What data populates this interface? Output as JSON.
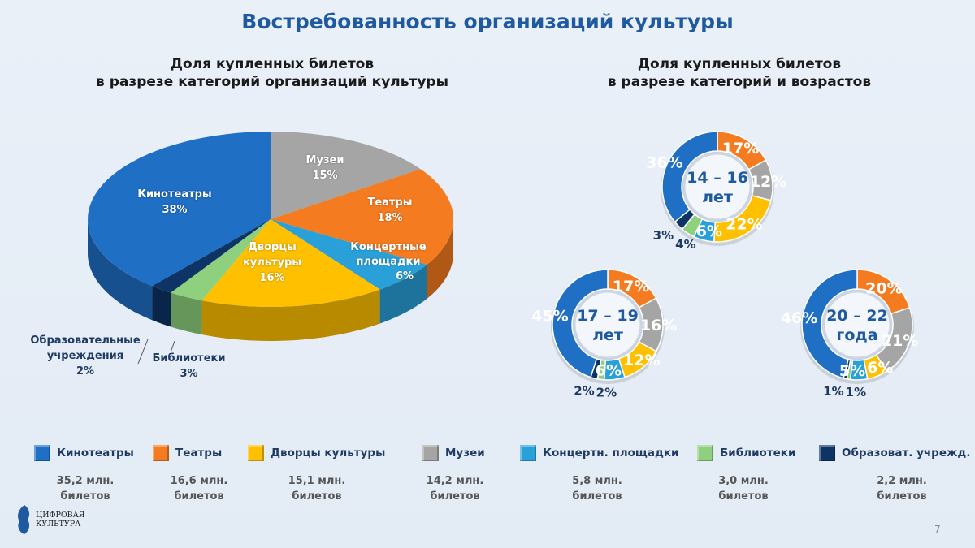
{
  "title": "Востребованность организаций культуры",
  "colors": {
    "kino": "#1f6fc5",
    "teatr": "#f47b20",
    "dvorcy": "#ffc000",
    "muzei": "#a5a5a5",
    "konc": "#2aa0d8",
    "bibl": "#8fd07f",
    "obr": "#0d3465"
  },
  "chart_data": [
    {
      "type": "pie",
      "title_line1": "Доля купленных билетов",
      "title_line2": "в разрезе категорий организаций культуры",
      "slices": [
        {
          "key": "muzei",
          "label": "Музеи",
          "value": 15,
          "value_label": "15%"
        },
        {
          "key": "teatr",
          "label": "Театры",
          "value": 18,
          "value_label": "18%"
        },
        {
          "key": "konc",
          "label": "Концертные площадки",
          "value": 6,
          "value_label": "6%"
        },
        {
          "key": "dvorcy",
          "label": "Дворцы культуры",
          "value": 16,
          "value_label": "16%"
        },
        {
          "key": "bibl",
          "label": "Библиотеки",
          "value": 3,
          "value_label": "3%"
        },
        {
          "key": "obr",
          "label": "Образовательные учреждения",
          "value": 2,
          "value_label": "2%"
        },
        {
          "key": "kino",
          "label": "Кинотеатры",
          "value": 38,
          "value_label": "38%"
        }
      ]
    },
    {
      "type": "pie",
      "title_line1": "Доля купленных билетов",
      "title_line2": "в разрезе категорий и возрастов",
      "donuts": [
        {
          "label_line1": "14 – 16",
          "label_line2": "лет",
          "values": [
            17,
            12,
            22,
            6,
            4,
            3,
            36
          ]
        },
        {
          "label_line1": "17 – 19",
          "label_line2": "лет",
          "values": [
            17,
            16,
            12,
            6,
            2,
            2,
            45
          ]
        },
        {
          "label_line1": "20 – 22",
          "label_line2": "года",
          "values": [
            20,
            21,
            6,
            5,
            1,
            1,
            46
          ]
        }
      ],
      "order": [
        "teatr",
        "muzei",
        "dvorcy",
        "konc",
        "bibl",
        "obr",
        "kino"
      ]
    }
  ],
  "legend": [
    {
      "key": "kino",
      "label": "Кинотеатры",
      "amount": "35,2 млн.",
      "unit": "билетов"
    },
    {
      "key": "teatr",
      "label": "Театры",
      "amount": "16,6 млн.",
      "unit": "билетов"
    },
    {
      "key": "dvorcy",
      "label": "Дворцы культуры",
      "amount": "15,1 млн.",
      "unit": "билетов"
    },
    {
      "key": "muzei",
      "label": "Музеи",
      "amount": "14,2 млн.",
      "unit": "билетов"
    },
    {
      "key": "konc",
      "label": "Концертн. площадки",
      "amount": "5,8 млн.",
      "unit": "билетов"
    },
    {
      "key": "bibl",
      "label": "Библиотеки",
      "amount": "3,0 млн.",
      "unit": "билетов"
    },
    {
      "key": "obr",
      "label": "Образоват. учрежд.",
      "amount": "2,2 млн.",
      "unit": "билетов"
    }
  ],
  "logo": {
    "line1": "ЦИФРОВАЯ",
    "line2": "КУЛЬТУРА"
  },
  "page_number": "7"
}
